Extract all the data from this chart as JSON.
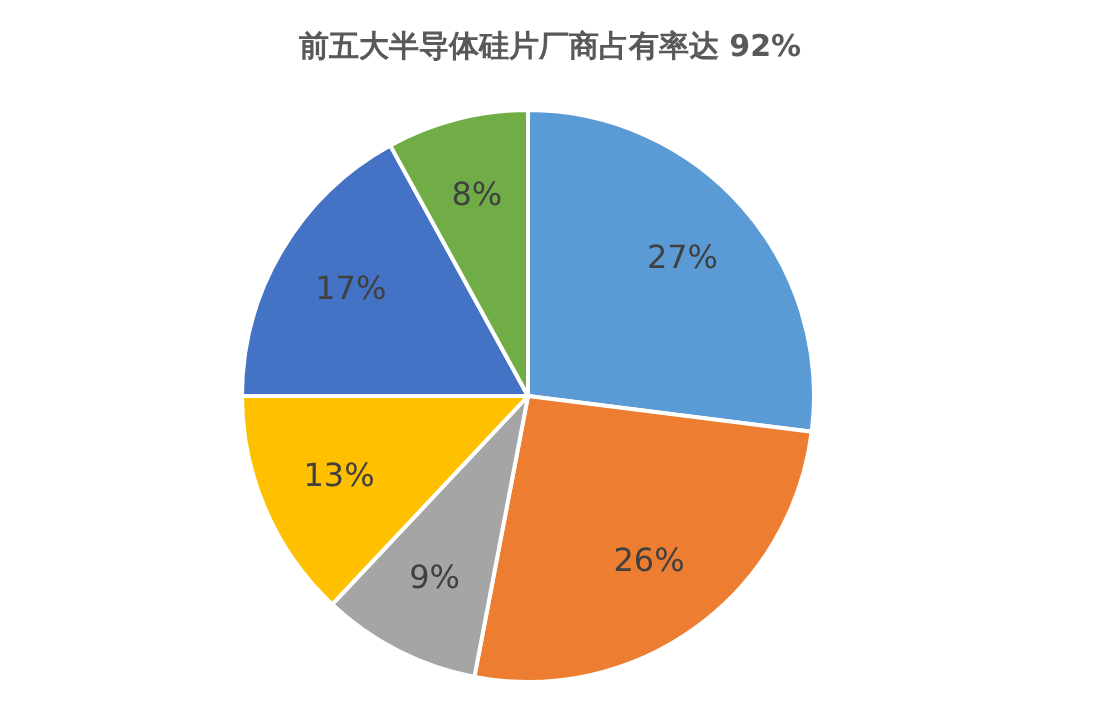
{
  "chart_data": {
    "type": "pie",
    "title": "前五大半导体硅片厂商占有率达 92%",
    "categories": [
      null,
      null,
      null,
      null,
      null,
      null
    ],
    "values": [
      27,
      26,
      9,
      13,
      17,
      8
    ],
    "value_labels": [
      "27%",
      "26%",
      "9%",
      "13%",
      "17%",
      "8%"
    ],
    "colors": [
      "#5b9bd5",
      "#ed7d31",
      "#a5a5a5",
      "#ffc000",
      "#4472c4",
      "#70ad47"
    ],
    "legend": false
  }
}
